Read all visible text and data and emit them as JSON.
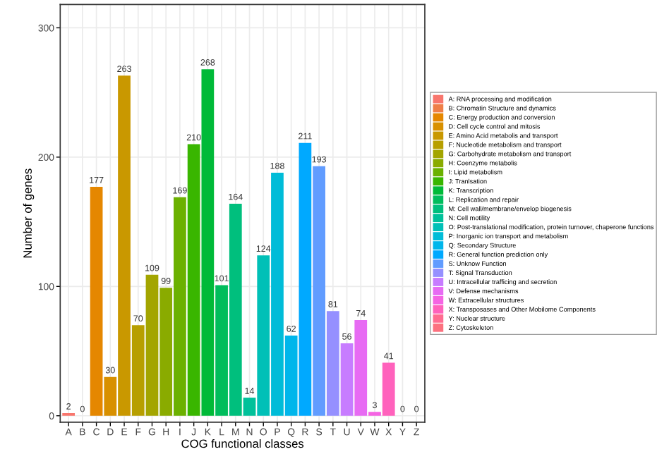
{
  "chart_data": {
    "type": "bar",
    "xlabel": "COG functional classes",
    "ylabel": "Number of genes",
    "categories": [
      "A",
      "B",
      "C",
      "D",
      "E",
      "F",
      "G",
      "H",
      "I",
      "J",
      "K",
      "L",
      "M",
      "N",
      "O",
      "P",
      "Q",
      "R",
      "S",
      "T",
      "U",
      "V",
      "W",
      "X",
      "Y",
      "Z"
    ],
    "series": [
      {
        "name": "A: RNA processing and modification",
        "color": "#f8766d",
        "values": [
          2,
          null,
          null,
          null,
          null,
          null,
          null,
          null,
          null,
          null,
          null,
          null,
          null,
          null,
          null,
          null,
          null,
          null,
          null,
          null,
          null,
          null,
          null,
          null,
          null,
          null
        ]
      },
      {
        "name": "B: Chromatin Structure and dynamics",
        "color": "#ef7f48",
        "values": [
          null,
          0,
          null,
          null,
          null,
          null,
          null,
          null,
          null,
          null,
          null,
          null,
          null,
          null,
          null,
          null,
          null,
          null,
          null,
          null,
          null,
          null,
          null,
          null,
          null,
          null
        ]
      },
      {
        "name": "C: Energy production and conversion",
        "color": "#e58700",
        "values": [
          null,
          null,
          177,
          null,
          null,
          null,
          null,
          null,
          null,
          null,
          null,
          null,
          null,
          null,
          null,
          null,
          null,
          null,
          null,
          null,
          null,
          null,
          null,
          null,
          null,
          null
        ]
      },
      {
        "name": "D: Cell cycle control and mitosis",
        "color": "#d89000",
        "values": [
          null,
          null,
          null,
          30,
          null,
          null,
          null,
          null,
          null,
          null,
          null,
          null,
          null,
          null,
          null,
          null,
          null,
          null,
          null,
          null,
          null,
          null,
          null,
          null,
          null,
          null
        ]
      },
      {
        "name": "E: Amino Acid metabolis and transport",
        "color": "#c99800",
        "values": [
          null,
          null,
          null,
          null,
          263,
          null,
          null,
          null,
          null,
          null,
          null,
          null,
          null,
          null,
          null,
          null,
          null,
          null,
          null,
          null,
          null,
          null,
          null,
          null,
          null,
          null
        ]
      },
      {
        "name": "F: Nucleotide metabolism and transport",
        "color": "#b79f00",
        "values": [
          null,
          null,
          null,
          null,
          null,
          70,
          null,
          null,
          null,
          null,
          null,
          null,
          null,
          null,
          null,
          null,
          null,
          null,
          null,
          null,
          null,
          null,
          null,
          null,
          null,
          null
        ]
      },
      {
        "name": "G: Carbohydrate metabolism and transport",
        "color": "#a3a500",
        "values": [
          null,
          null,
          null,
          null,
          null,
          null,
          109,
          null,
          null,
          null,
          null,
          null,
          null,
          null,
          null,
          null,
          null,
          null,
          null,
          null,
          null,
          null,
          null,
          null,
          null,
          null
        ]
      },
      {
        "name": "H: Coenzyme metabolis",
        "color": "#8aab00",
        "values": [
          null,
          null,
          null,
          null,
          null,
          null,
          null,
          99,
          null,
          null,
          null,
          null,
          null,
          null,
          null,
          null,
          null,
          null,
          null,
          null,
          null,
          null,
          null,
          null,
          null,
          null
        ]
      },
      {
        "name": "I: Lipid metabolism",
        "color": "#6bb100",
        "values": [
          null,
          null,
          null,
          null,
          null,
          null,
          null,
          null,
          169,
          null,
          null,
          null,
          null,
          null,
          null,
          null,
          null,
          null,
          null,
          null,
          null,
          null,
          null,
          null,
          null,
          null
        ]
      },
      {
        "name": "J: Tranlsation",
        "color": "#39b600",
        "values": [
          null,
          null,
          null,
          null,
          null,
          null,
          null,
          null,
          null,
          210,
          null,
          null,
          null,
          null,
          null,
          null,
          null,
          null,
          null,
          null,
          null,
          null,
          null,
          null,
          null,
          null
        ]
      },
      {
        "name": "K: Transcription",
        "color": "#00ba38",
        "values": [
          null,
          null,
          null,
          null,
          null,
          null,
          null,
          null,
          null,
          null,
          268,
          null,
          null,
          null,
          null,
          null,
          null,
          null,
          null,
          null,
          null,
          null,
          null,
          null,
          null,
          null
        ]
      },
      {
        "name": "L: Replication and repair",
        "color": "#00bd5c",
        "values": [
          null,
          null,
          null,
          null,
          null,
          null,
          null,
          null,
          null,
          null,
          null,
          101,
          null,
          null,
          null,
          null,
          null,
          null,
          null,
          null,
          null,
          null,
          null,
          null,
          null,
          null
        ]
      },
      {
        "name": "M: Cell wall/membrane/envelop biogenesis",
        "color": "#00bf7d",
        "values": [
          null,
          null,
          null,
          null,
          null,
          null,
          null,
          null,
          null,
          null,
          null,
          null,
          164,
          null,
          null,
          null,
          null,
          null,
          null,
          null,
          null,
          null,
          null,
          null,
          null,
          null
        ]
      },
      {
        "name": "N: Cell motility",
        "color": "#00c19a",
        "values": [
          null,
          null,
          null,
          null,
          null,
          null,
          null,
          null,
          null,
          null,
          null,
          null,
          null,
          14,
          null,
          null,
          null,
          null,
          null,
          null,
          null,
          null,
          null,
          null,
          null,
          null
        ]
      },
      {
        "name": "O: Post-translational modification, protein turnover, chaperone functions",
        "color": "#00c0b7",
        "values": [
          null,
          null,
          null,
          null,
          null,
          null,
          null,
          null,
          null,
          null,
          null,
          null,
          null,
          null,
          124,
          null,
          null,
          null,
          null,
          null,
          null,
          null,
          null,
          null,
          null,
          null
        ]
      },
      {
        "name": "P: Inorganic ion transport and metabolism",
        "color": "#00bcd8",
        "values": [
          null,
          null,
          null,
          null,
          null,
          null,
          null,
          null,
          null,
          null,
          null,
          null,
          null,
          null,
          null,
          188,
          null,
          null,
          null,
          null,
          null,
          null,
          null,
          null,
          null,
          null
        ]
      },
      {
        "name": "Q: Secondary Structure",
        "color": "#00b6eb",
        "values": [
          null,
          null,
          null,
          null,
          null,
          null,
          null,
          null,
          null,
          null,
          null,
          null,
          null,
          null,
          null,
          null,
          62,
          null,
          null,
          null,
          null,
          null,
          null,
          null,
          null,
          null
        ]
      },
      {
        "name": "R: General function prediction only",
        "color": "#00a9ff",
        "values": [
          null,
          null,
          null,
          null,
          null,
          null,
          null,
          null,
          null,
          null,
          null,
          null,
          null,
          null,
          null,
          null,
          null,
          211,
          null,
          null,
          null,
          null,
          null,
          null,
          null,
          null
        ]
      },
      {
        "name": "S: Unknow Function",
        "color": "#619cff",
        "values": [
          null,
          null,
          null,
          null,
          null,
          null,
          null,
          null,
          null,
          null,
          null,
          null,
          null,
          null,
          null,
          null,
          null,
          null,
          193,
          null,
          null,
          null,
          null,
          null,
          null,
          null
        ]
      },
      {
        "name": "T: Signal Transduction",
        "color": "#9590ff",
        "values": [
          null,
          null,
          null,
          null,
          null,
          null,
          null,
          null,
          null,
          null,
          null,
          null,
          null,
          null,
          null,
          null,
          null,
          null,
          null,
          81,
          null,
          null,
          null,
          null,
          null,
          null
        ]
      },
      {
        "name": "U: Intracellular trafficing and secretion",
        "color": "#c77cff",
        "values": [
          null,
          null,
          null,
          null,
          null,
          null,
          null,
          null,
          null,
          null,
          null,
          null,
          null,
          null,
          null,
          null,
          null,
          null,
          null,
          null,
          56,
          null,
          null,
          null,
          null,
          null
        ]
      },
      {
        "name": "V: Defense mechanisms",
        "color": "#e76bf3",
        "values": [
          null,
          null,
          null,
          null,
          null,
          null,
          null,
          null,
          null,
          null,
          null,
          null,
          null,
          null,
          null,
          null,
          null,
          null,
          null,
          null,
          null,
          74,
          null,
          null,
          null,
          null
        ]
      },
      {
        "name": "W: Extracellular structures",
        "color": "#f564e3",
        "values": [
          null,
          null,
          null,
          null,
          null,
          null,
          null,
          null,
          null,
          null,
          null,
          null,
          null,
          null,
          null,
          null,
          null,
          null,
          null,
          null,
          null,
          null,
          3,
          null,
          null,
          null
        ]
      },
      {
        "name": "X: Transposases and Other Mobilome Components",
        "color": "#ff62bc",
        "values": [
          null,
          null,
          null,
          null,
          null,
          null,
          null,
          null,
          null,
          null,
          null,
          null,
          null,
          null,
          null,
          null,
          null,
          null,
          null,
          null,
          null,
          null,
          null,
          41,
          null,
          null
        ]
      },
      {
        "name": "Y: Nuclear structure",
        "color": "#ff6c91",
        "values": [
          null,
          null,
          null,
          null,
          null,
          null,
          null,
          null,
          null,
          null,
          null,
          null,
          null,
          null,
          null,
          null,
          null,
          null,
          null,
          null,
          null,
          null,
          null,
          null,
          0,
          null
        ]
      },
      {
        "name": "Z: Cytoskeleton",
        "color": "#fc717f",
        "values": [
          null,
          null,
          null,
          null,
          null,
          null,
          null,
          null,
          null,
          null,
          null,
          null,
          null,
          null,
          null,
          null,
          null,
          null,
          null,
          null,
          null,
          null,
          null,
          null,
          null,
          0
        ]
      }
    ],
    "ylim": [
      -5,
      318
    ],
    "yticks": [
      0,
      100,
      200,
      300
    ],
    "grid": true,
    "legend": "right",
    "data_labels": true
  }
}
